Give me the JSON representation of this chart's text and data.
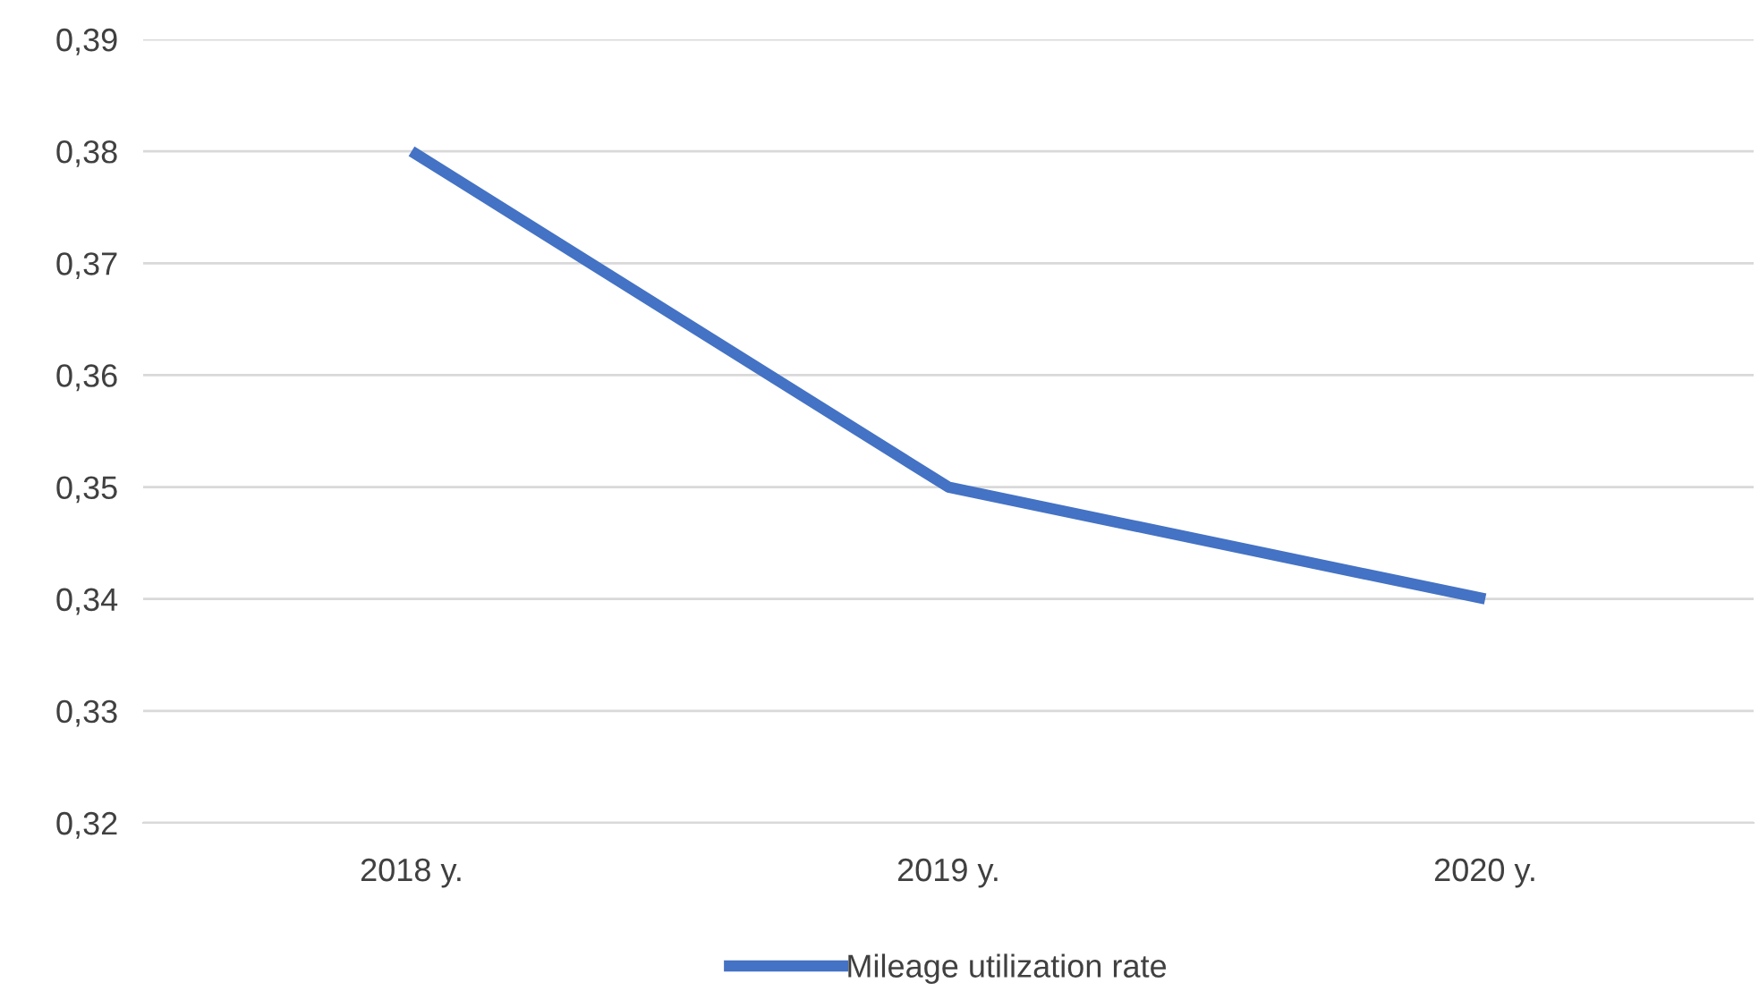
{
  "chart_data": {
    "type": "line",
    "categories": [
      "2018 y.",
      "2019 y.",
      "2020 y."
    ],
    "series": [
      {
        "name": "Mileage utilization rate",
        "color": "#4472c4",
        "values": [
          0.38,
          0.35,
          0.34
        ]
      }
    ],
    "ylim": [
      0.32,
      0.39
    ],
    "yticks": [
      {
        "value": 0.32,
        "label": "0,32"
      },
      {
        "value": 0.33,
        "label": "0,33"
      },
      {
        "value": 0.34,
        "label": "0,34"
      },
      {
        "value": 0.35,
        "label": "0,35"
      },
      {
        "value": 0.36,
        "label": "0,36"
      },
      {
        "value": 0.37,
        "label": "0,37"
      },
      {
        "value": 0.38,
        "label": "0,38"
      },
      {
        "value": 0.39,
        "label": "0,39"
      }
    ],
    "grid": "y",
    "legend": "bottom",
    "marker": "none",
    "line_style": "solid"
  }
}
